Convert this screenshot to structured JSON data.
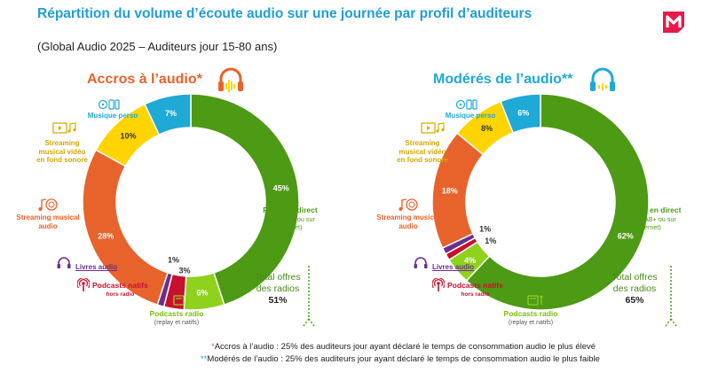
{
  "title": "Répartition du volume d’écoute audio sur une journée par profil d’auditeurs",
  "subtitle": "(Global Audio 2025 – Auditeurs jour 15-80 ans)",
  "colors": {
    "radio_direct": "#4d9a14",
    "podcasts_radio": "#8fd11c",
    "podcasts_natifs": "#c8102e",
    "livres_audio": "#6b2e8c",
    "streaming_musical": "#e8632b",
    "streaming_video": "#ffd400",
    "musique_perso": "#1fa9d6"
  },
  "labels": {
    "musique_perso": "Musique perso",
    "streaming_video": [
      "Streaming",
      "musical vidéo",
      "en fond sonore"
    ],
    "streaming_musical": [
      "Streaming musical",
      "audio"
    ],
    "livres_audio": "Livres audio",
    "podcasts_natifs": "Podcasts natifs",
    "podcasts_natifs_sub": "hors radio",
    "podcasts_radio": "Podcasts radio",
    "podcasts_radio_sub": "(replay et natifs)",
    "radio_direct": "Radio en direct",
    "radio_direct_sub": [
      "(FM/DAB+ ou sur",
      "Internet)"
    ],
    "total_offres": [
      "Total offres",
      "des radios"
    ]
  },
  "profiles": [
    {
      "title": "Accros à l’audio*",
      "total": "51%"
    },
    {
      "title": "Modérés de l’audio**",
      "total": "65%"
    }
  ],
  "footnotes": {
    "star1": "*",
    "note1": "Accros à l’audio : 25% des auditeurs jour ayant déclaré le temps de consommation audio le plus élevé",
    "star2": "**",
    "note2": "Modérés de l’audio : 25% des auditeurs jour ayant déclaré le temps de consommation audio le plus faible"
  },
  "chart_data": [
    {
      "type": "pie",
      "title": "Accros à l’audio*",
      "categories": [
        "Radio en direct",
        "Podcasts radio",
        "Podcasts natifs",
        "Livres audio",
        "Streaming musical audio",
        "Streaming musical vidéo en fond sonore",
        "Musique perso"
      ],
      "values": [
        45,
        6,
        3,
        1,
        28,
        10,
        7
      ],
      "value_labels": [
        "45%",
        "6%",
        "3%",
        "1%",
        "28%",
        "10%",
        "7%"
      ],
      "total_label": "51%"
    },
    {
      "type": "pie",
      "title": "Modérés de l’audio**",
      "categories": [
        "Radio en direct",
        "Podcasts radio",
        "Podcasts natifs",
        "Livres audio",
        "Streaming musical audio",
        "Streaming musical vidéo en fond sonore",
        "Musique perso"
      ],
      "values": [
        62,
        4,
        1,
        1,
        18,
        8,
        6
      ],
      "value_labels": [
        "62%",
        "4%",
        "1%",
        "1%",
        "18%",
        "8%",
        "6%"
      ],
      "total_label": "65%"
    }
  ]
}
